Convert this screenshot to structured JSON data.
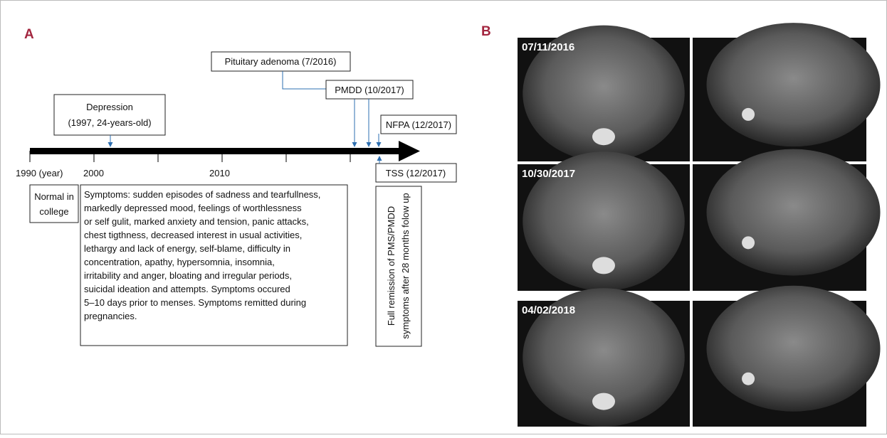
{
  "panel_a": {
    "label": "A",
    "axis_labels": [
      "1990 (year)",
      "2000",
      "2010"
    ],
    "events": {
      "depression": [
        "Depression",
        "(1997, 24-years-old)"
      ],
      "pituitary": "Pituitary adenoma (7/2016)",
      "pmdd": "PMDD (10/2017)",
      "nfpa": "NFPA (12/2017)",
      "tss": "TSS (12/2017)"
    },
    "normal": [
      "Normal in",
      "college"
    ],
    "symptoms": [
      "Symptoms: sudden episodes of sadness and tearfullness,",
      "markedly depressed mood, feelings of worthlessness",
      "or self gulit, marked anxiety and tension, panic attacks,",
      "chest tigthness, decreased interest in usual activities,",
      "lethargy and lack of energy, self-blame, difficulty in",
      "concentration, apathy, hypersomnia, insomnia,",
      "irritability and anger, bloating and irregular periods,",
      "suicidal ideation and attempts. Symptoms occured",
      "5–10 days prior to menses. Symptoms remitted during",
      "pregnancies."
    ],
    "remission": [
      "Full remission of PMS/PMDD",
      "symptoms after 28 months folow up"
    ]
  },
  "panel_b": {
    "label": "B",
    "dates": [
      "07/11/2016",
      "10/30/2017",
      "04/02/2018"
    ]
  }
}
